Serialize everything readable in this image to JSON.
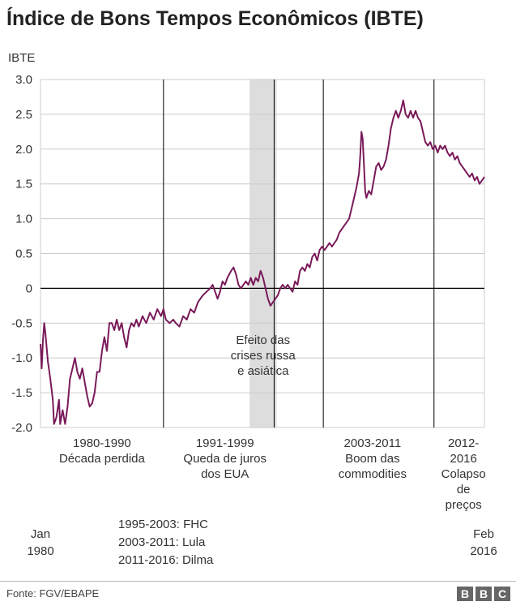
{
  "title": "Índice de Bons Tempos Econômicos (IBTE)",
  "source": "Fonte: FGV/EBAPE",
  "logo": [
    "B",
    "B",
    "C"
  ],
  "legend_lines": [
    "1995-2003: FHC",
    "2003-2011: Lula",
    "2011-2016: Dilma"
  ],
  "colors": {
    "line": "#7a1a5a",
    "shade": "#dddddd",
    "axis": "#000000",
    "grid": "#cccccc"
  },
  "chart_data": {
    "type": "line",
    "title": "Índice de Bons Tempos Econômicos (IBTE)",
    "ylabel": "IBTE",
    "xlabel": "",
    "ylim": [
      -2.0,
      3.0
    ],
    "xlim": [
      1980.0,
      2016.1
    ],
    "yticks": [
      "3.0",
      "2.5",
      "2.0",
      "1.5",
      "1.0",
      "0.5",
      "0",
      "-0.5",
      "-1.0",
      "-1.5",
      "-2.0"
    ],
    "ytick_values": [
      3.0,
      2.5,
      2.0,
      1.5,
      1.0,
      0.5,
      0,
      -0.5,
      -1.0,
      -1.5,
      -2.0
    ],
    "grid": true,
    "x_start_label": [
      "Jan",
      "1980"
    ],
    "x_end_label": [
      "Feb",
      "2016"
    ],
    "dividers": [
      1990,
      1999,
      2003,
      2012
    ],
    "shaded_region": {
      "from": 1997,
      "to": 1999.2,
      "label": [
        "Efeito das",
        "crises russa",
        "e asiática"
      ]
    },
    "periods": [
      {
        "lines": [
          "1980-1990",
          "Década perdida"
        ],
        "center": 1985
      },
      {
        "lines": [
          "1991-1999",
          "Queda de juros",
          "dos EUA"
        ],
        "center": 1995
      },
      {
        "lines": [
          "2003-2011",
          "Boom das",
          "commodities"
        ],
        "center": 2007
      },
      {
        "lines": [
          "2012-",
          "2016",
          "Colapso",
          "de",
          "preços"
        ],
        "center": 2014.4
      }
    ],
    "series": [
      {
        "name": "IBTE",
        "points": [
          [
            1980.0,
            -0.8
          ],
          [
            1980.1,
            -1.15
          ],
          [
            1980.2,
            -0.75
          ],
          [
            1980.3,
            -0.5
          ],
          [
            1980.4,
            -0.65
          ],
          [
            1980.6,
            -1.05
          ],
          [
            1980.8,
            -1.3
          ],
          [
            1981.0,
            -1.6
          ],
          [
            1981.1,
            -1.95
          ],
          [
            1981.3,
            -1.85
          ],
          [
            1981.5,
            -1.6
          ],
          [
            1981.6,
            -1.95
          ],
          [
            1981.8,
            -1.75
          ],
          [
            1982.0,
            -1.95
          ],
          [
            1982.2,
            -1.7
          ],
          [
            1982.4,
            -1.3
          ],
          [
            1982.6,
            -1.15
          ],
          [
            1982.8,
            -1.0
          ],
          [
            1983.0,
            -1.2
          ],
          [
            1983.2,
            -1.3
          ],
          [
            1983.4,
            -1.15
          ],
          [
            1983.6,
            -1.35
          ],
          [
            1983.8,
            -1.55
          ],
          [
            1984.0,
            -1.7
          ],
          [
            1984.2,
            -1.65
          ],
          [
            1984.4,
            -1.5
          ],
          [
            1984.6,
            -1.2
          ],
          [
            1984.8,
            -1.2
          ],
          [
            1985.0,
            -0.9
          ],
          [
            1985.2,
            -0.7
          ],
          [
            1985.4,
            -0.9
          ],
          [
            1985.6,
            -0.5
          ],
          [
            1985.8,
            -0.5
          ],
          [
            1986.0,
            -0.6
          ],
          [
            1986.2,
            -0.45
          ],
          [
            1986.4,
            -0.6
          ],
          [
            1986.6,
            -0.5
          ],
          [
            1986.8,
            -0.7
          ],
          [
            1987.0,
            -0.85
          ],
          [
            1987.2,
            -0.6
          ],
          [
            1987.4,
            -0.5
          ],
          [
            1987.6,
            -0.55
          ],
          [
            1987.8,
            -0.45
          ],
          [
            1988.0,
            -0.55
          ],
          [
            1988.3,
            -0.4
          ],
          [
            1988.6,
            -0.5
          ],
          [
            1988.9,
            -0.35
          ],
          [
            1989.2,
            -0.45
          ],
          [
            1989.5,
            -0.3
          ],
          [
            1989.8,
            -0.4
          ],
          [
            1990.0,
            -0.3
          ],
          [
            1990.2,
            -0.45
          ],
          [
            1990.5,
            -0.5
          ],
          [
            1990.8,
            -0.45
          ],
          [
            1991.0,
            -0.5
          ],
          [
            1991.3,
            -0.55
          ],
          [
            1991.6,
            -0.4
          ],
          [
            1991.9,
            -0.45
          ],
          [
            1992.2,
            -0.3
          ],
          [
            1992.5,
            -0.35
          ],
          [
            1992.8,
            -0.2
          ],
          [
            1993.0,
            -0.15
          ],
          [
            1993.2,
            -0.1
          ],
          [
            1993.5,
            -0.05
          ],
          [
            1993.8,
            0.0
          ],
          [
            1994.0,
            0.05
          ],
          [
            1994.2,
            -0.05
          ],
          [
            1994.4,
            -0.15
          ],
          [
            1994.6,
            -0.05
          ],
          [
            1994.8,
            0.1
          ],
          [
            1995.0,
            0.05
          ],
          [
            1995.2,
            0.15
          ],
          [
            1995.5,
            0.25
          ],
          [
            1995.7,
            0.3
          ],
          [
            1995.9,
            0.2
          ],
          [
            1996.1,
            0.05
          ],
          [
            1996.3,
            0.0
          ],
          [
            1996.5,
            0.05
          ],
          [
            1996.7,
            0.1
          ],
          [
            1996.9,
            0.05
          ],
          [
            1997.1,
            0.15
          ],
          [
            1997.3,
            0.05
          ],
          [
            1997.5,
            0.15
          ],
          [
            1997.7,
            0.1
          ],
          [
            1997.9,
            0.25
          ],
          [
            1998.1,
            0.15
          ],
          [
            1998.3,
            0.0
          ],
          [
            1998.5,
            -0.15
          ],
          [
            1998.7,
            -0.25
          ],
          [
            1998.9,
            -0.2
          ],
          [
            1999.1,
            -0.15
          ],
          [
            1999.3,
            -0.1
          ],
          [
            1999.5,
            0.0
          ],
          [
            1999.7,
            0.05
          ],
          [
            1999.9,
            0.0
          ],
          [
            2000.1,
            0.05
          ],
          [
            2000.3,
            0.0
          ],
          [
            2000.5,
            -0.05
          ],
          [
            2000.7,
            0.1
          ],
          [
            2000.9,
            0.05
          ],
          [
            2001.1,
            0.25
          ],
          [
            2001.3,
            0.3
          ],
          [
            2001.5,
            0.25
          ],
          [
            2001.7,
            0.35
          ],
          [
            2001.9,
            0.3
          ],
          [
            2002.1,
            0.45
          ],
          [
            2002.3,
            0.5
          ],
          [
            2002.5,
            0.4
          ],
          [
            2002.7,
            0.55
          ],
          [
            2002.9,
            0.6
          ],
          [
            2003.1,
            0.55
          ],
          [
            2003.3,
            0.6
          ],
          [
            2003.5,
            0.65
          ],
          [
            2003.7,
            0.6
          ],
          [
            2003.9,
            0.65
          ],
          [
            2004.1,
            0.7
          ],
          [
            2004.3,
            0.8
          ],
          [
            2004.5,
            0.85
          ],
          [
            2004.7,
            0.9
          ],
          [
            2004.9,
            0.95
          ],
          [
            2005.1,
            1.0
          ],
          [
            2005.3,
            1.15
          ],
          [
            2005.5,
            1.3
          ],
          [
            2005.7,
            1.45
          ],
          [
            2005.9,
            1.65
          ],
          [
            2006.0,
            1.9
          ],
          [
            2006.1,
            2.25
          ],
          [
            2006.2,
            2.15
          ],
          [
            2006.3,
            1.8
          ],
          [
            2006.4,
            1.4
          ],
          [
            2006.5,
            1.3
          ],
          [
            2006.7,
            1.4
          ],
          [
            2006.9,
            1.35
          ],
          [
            2007.1,
            1.55
          ],
          [
            2007.3,
            1.75
          ],
          [
            2007.5,
            1.8
          ],
          [
            2007.7,
            1.7
          ],
          [
            2007.9,
            1.75
          ],
          [
            2008.1,
            1.85
          ],
          [
            2008.3,
            2.05
          ],
          [
            2008.5,
            2.3
          ],
          [
            2008.7,
            2.45
          ],
          [
            2008.9,
            2.55
          ],
          [
            2009.1,
            2.45
          ],
          [
            2009.3,
            2.55
          ],
          [
            2009.5,
            2.7
          ],
          [
            2009.7,
            2.5
          ],
          [
            2009.9,
            2.45
          ],
          [
            2010.1,
            2.55
          ],
          [
            2010.3,
            2.45
          ],
          [
            2010.5,
            2.55
          ],
          [
            2010.7,
            2.45
          ],
          [
            2010.9,
            2.4
          ],
          [
            2011.1,
            2.25
          ],
          [
            2011.3,
            2.1
          ],
          [
            2011.5,
            2.05
          ],
          [
            2011.7,
            2.1
          ],
          [
            2011.9,
            2.0
          ],
          [
            2012.1,
            2.05
          ],
          [
            2012.3,
            1.95
          ],
          [
            2012.5,
            2.05
          ],
          [
            2012.7,
            2.0
          ],
          [
            2012.9,
            2.05
          ],
          [
            2013.1,
            1.95
          ],
          [
            2013.3,
            1.9
          ],
          [
            2013.5,
            1.95
          ],
          [
            2013.7,
            1.85
          ],
          [
            2013.9,
            1.9
          ],
          [
            2014.1,
            1.8
          ],
          [
            2014.3,
            1.75
          ],
          [
            2014.5,
            1.7
          ],
          [
            2014.7,
            1.65
          ],
          [
            2014.9,
            1.6
          ],
          [
            2015.1,
            1.65
          ],
          [
            2015.3,
            1.55
          ],
          [
            2015.5,
            1.6
          ],
          [
            2015.7,
            1.5
          ],
          [
            2015.9,
            1.55
          ],
          [
            2016.1,
            1.6
          ]
        ]
      }
    ]
  }
}
